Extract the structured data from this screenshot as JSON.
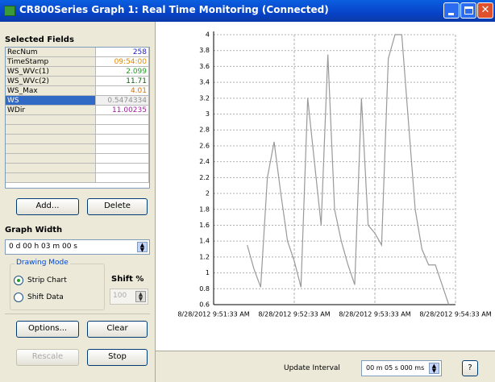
{
  "window": {
    "title": "CR800Series Graph 1: Real Time Monitoring (Connected)"
  },
  "fields": {
    "heading": "Selected Fields",
    "rows": [
      {
        "name": "RecNum",
        "value": "258",
        "color": "#2020c0"
      },
      {
        "name": "TimeStamp",
        "value": "09:54:00",
        "color": "#e08a00"
      },
      {
        "name": "WS_WVc(1)",
        "value": "2.099",
        "color": "#20a020"
      },
      {
        "name": "WS_WVc(2)",
        "value": "11.71",
        "color": "#106010"
      },
      {
        "name": "WS_Max",
        "value": "4.01",
        "color": "#e07000"
      },
      {
        "name": "WS",
        "value": "0.5474334",
        "color": "#909090"
      },
      {
        "name": "WDir",
        "value": "11.00235",
        "color": "#a020a0"
      }
    ]
  },
  "buttons": {
    "add": "Add...",
    "delete": "Delete",
    "options": "Options...",
    "clear": "Clear",
    "rescale": "Rescale",
    "stop": "Stop"
  },
  "graph_width": {
    "label": "Graph Width",
    "value": "0 d 00 h 03 m 00 s"
  },
  "drawing_mode": {
    "label": "Drawing Mode",
    "options": [
      "Strip Chart",
      "Shift Data"
    ],
    "shift_label": "Shift %",
    "shift_value": "100"
  },
  "update_interval": {
    "label": "Update Interval",
    "value": "00 m 05 s 000 ms",
    "help": "?"
  },
  "chart_data": {
    "type": "line",
    "x": [
      "2012-08-28 09:51:58",
      "2012-08-28 09:52:03",
      "2012-08-28 09:52:08",
      "2012-08-28 09:52:13",
      "2012-08-28 09:52:18",
      "2012-08-28 09:52:23",
      "2012-08-28 09:52:28",
      "2012-08-28 09:52:33",
      "2012-08-28 09:52:38",
      "2012-08-28 09:52:43",
      "2012-08-28 09:52:48",
      "2012-08-28 09:52:53",
      "2012-08-28 09:52:58",
      "2012-08-28 09:53:03",
      "2012-08-28 09:53:08",
      "2012-08-28 09:53:13",
      "2012-08-28 09:53:18",
      "2012-08-28 09:53:23",
      "2012-08-28 09:53:28",
      "2012-08-28 09:53:33",
      "2012-08-28 09:53:38",
      "2012-08-28 09:53:43",
      "2012-08-28 09:53:48",
      "2012-08-28 09:53:53",
      "2012-08-28 09:53:58",
      "2012-08-28 09:54:03",
      "2012-08-28 09:54:08",
      "2012-08-28 09:54:13",
      "2012-08-28 09:54:18",
      "2012-08-28 09:54:23",
      "2012-08-28 09:54:28"
    ],
    "series": [
      {
        "color": "#999999",
        "values": [
          1.35,
          1.05,
          0.82,
          2.2,
          2.65,
          2.0,
          1.4,
          1.15,
          0.82,
          3.2,
          2.4,
          1.6,
          3.75,
          1.8,
          1.4,
          1.1,
          0.85,
          3.2,
          1.6,
          1.5,
          1.35,
          3.7,
          4,
          4,
          2.9,
          1.8,
          1.3,
          1.1,
          1.1,
          0.85,
          0.6
        ]
      }
    ],
    "xlim": [
      "2012-08-28 09:51:33",
      "2012-08-28 09:54:33"
    ],
    "xticks": [
      {
        "value": "2012-08-28 09:51:33",
        "label": "8/28/2012 9:51:33 AM"
      },
      {
        "value": "2012-08-28 09:52:33",
        "label": "8/28/2012 9:52:33 AM"
      },
      {
        "value": "2012-08-28 09:53:33",
        "label": "8/28/2012 9:53:33 AM"
      },
      {
        "value": "2012-08-28 09:54:33",
        "label": "8/28/2012 9:54:33 AM"
      }
    ],
    "ylim": [
      0.6,
      4
    ],
    "yticks": [
      0.6,
      0.8,
      1,
      1.2,
      1.4,
      1.6,
      1.8,
      2,
      2.2,
      2.4,
      2.6,
      2.8,
      3,
      3.2,
      3.4,
      3.6,
      3.8,
      4
    ],
    "grid": true
  }
}
